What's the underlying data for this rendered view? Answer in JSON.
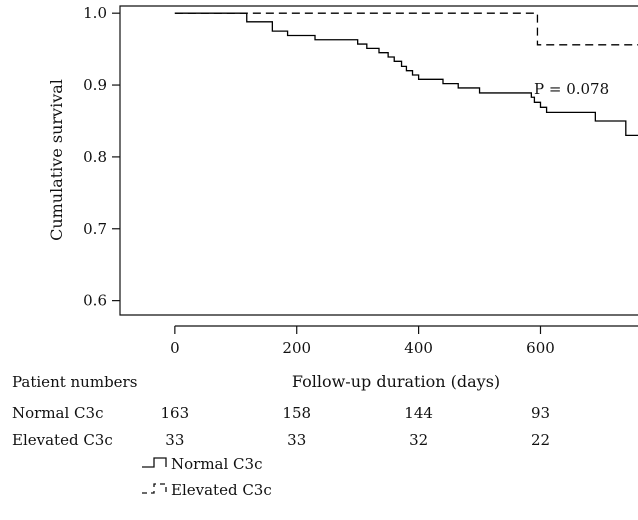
{
  "chart_data": {
    "type": "line",
    "subtype": "kaplan-meier-step",
    "xlabel": "Follow-up duration (days)",
    "ylabel": "Cumulative survival",
    "xlim": [
      -90,
      760
    ],
    "ylim": [
      0.58,
      1.01
    ],
    "xticks": [
      0,
      200,
      400,
      600
    ],
    "yticks": [
      0.6,
      0.7,
      0.8,
      0.9,
      1.0
    ],
    "ytick_labels": [
      "0.6",
      "0.7",
      "0.8",
      "0.9",
      "1.0"
    ],
    "grid": false,
    "annotation": {
      "text": "P = 0.078",
      "x": 620,
      "y": 0.905
    },
    "series": [
      {
        "name": "Normal C3c",
        "style": "solid",
        "color": "#000000",
        "x": [
          0,
          118,
          135,
          160,
          185,
          230,
          265,
          300,
          315,
          335,
          350,
          360,
          372,
          380,
          390,
          400,
          415,
          440,
          465,
          480,
          500,
          585,
          590,
          600,
          610,
          690,
          740,
          760
        ],
        "y": [
          1.0,
          0.988,
          0.988,
          0.975,
          0.969,
          0.963,
          0.963,
          0.957,
          0.951,
          0.945,
          0.939,
          0.933,
          0.926,
          0.92,
          0.914,
          0.908,
          0.908,
          0.902,
          0.896,
          0.896,
          0.889,
          0.883,
          0.876,
          0.869,
          0.862,
          0.85,
          0.83,
          0.83
        ]
      },
      {
        "name": "Elevated C3c",
        "style": "dashed",
        "color": "#000000",
        "x": [
          0,
          595,
          760
        ],
        "y": [
          1.0,
          0.956,
          0.956
        ]
      }
    ],
    "risk_table": {
      "title": "Patient numbers",
      "x_positions": [
        0,
        200,
        400,
        600
      ],
      "rows": [
        {
          "label": "Normal C3c",
          "values": [
            "163",
            "158",
            "144",
            "93"
          ]
        },
        {
          "label": "Elevated C3c",
          "values": [
            "33",
            "33",
            "32",
            "22"
          ]
        }
      ]
    },
    "legend": {
      "placement": "bottom-left",
      "entries": [
        {
          "label": "Normal C3c",
          "style": "solid"
        },
        {
          "label": "Elevated C3c",
          "style": "dashed"
        }
      ]
    }
  }
}
